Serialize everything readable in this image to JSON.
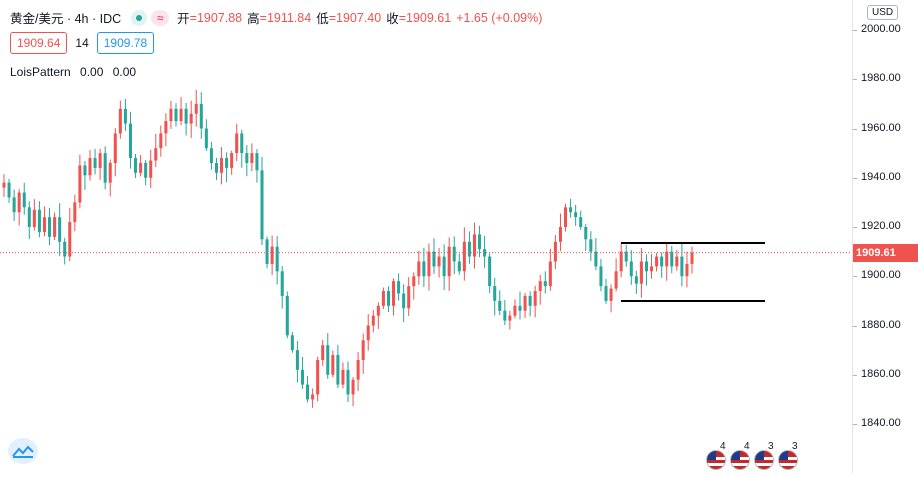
{
  "legend": {
    "symbol": "黄金/美元 · 4h · IDC",
    "approx_symbol": "≈",
    "ohlc": [
      {
        "key": "开",
        "value": "=1907.88"
      },
      {
        "key": "高",
        "value": "=1911.84"
      },
      {
        "key": "低",
        "value": "=1907.40"
      },
      {
        "key": "收",
        "value": "=1909.61"
      }
    ],
    "change": "+1.65 (+0.09%)"
  },
  "controls": {
    "bid": "1909.64",
    "spread": "14",
    "ask": "1909.78"
  },
  "indicator": {
    "name": "LoisPattern",
    "value1": "0.00",
    "value2": "0.00"
  },
  "price_axis": {
    "currency": "USD",
    "last_price_label": "1909.61",
    "ticks": [
      "2000.00",
      "1980.00",
      "1960.00",
      "1940.00",
      "1920.00",
      "1900.00",
      "1880.00",
      "1860.00",
      "1840.00"
    ]
  },
  "event_flags": [
    {
      "count": "4"
    },
    {
      "count": "4"
    },
    {
      "count": "3"
    },
    {
      "count": "3"
    }
  ],
  "colors": {
    "up": "#ef5350",
    "down": "#26a69a",
    "last_price_line": "#ef5350",
    "trend_lines": "#000000"
  },
  "chart_data": {
    "type": "candlestick",
    "ylim": [
      1835,
      2005
    ],
    "last_price": 1909.61,
    "closes": [
      1938,
      1932,
      1926,
      1934,
      1928,
      1920,
      1927,
      1918,
      1924,
      1916,
      1924,
      1914,
      1908,
      1922,
      1930,
      1945,
      1941,
      1948,
      1944,
      1950,
      1938,
      1946,
      1958,
      1968,
      1962,
      1948,
      1942,
      1946,
      1940,
      1947,
      1952,
      1958,
      1963,
      1968,
      1963,
      1968,
      1962,
      1966,
      1970,
      1960,
      1952,
      1946,
      1942,
      1948,
      1944,
      1950,
      1958,
      1950,
      1946,
      1950,
      1943,
      1915,
      1905,
      1912,
      1902,
      1892,
      1876,
      1870,
      1862,
      1856,
      1850,
      1852,
      1866,
      1872,
      1860,
      1868,
      1856,
      1862,
      1852,
      1858,
      1866,
      1874,
      1880,
      1884,
      1888,
      1894,
      1888,
      1898,
      1893,
      1887,
      1896,
      1900,
      1906,
      1900,
      1910,
      1904,
      1908,
      1900,
      1912,
      1906,
      1902,
      1914,
      1908,
      1917,
      1911,
      1908,
      1896,
      1890,
      1886,
      1882,
      1884,
      1888,
      1886,
      1892,
      1888,
      1894,
      1898,
      1896,
      1906,
      1914,
      1920,
      1928,
      1926,
      1924,
      1920,
      1915,
      1910,
      1904,
      1896,
      1890,
      1895,
      1902,
      1910,
      1906,
      1900,
      1897,
      1906,
      1902,
      1904,
      1908,
      1904,
      1910,
      1904,
      1908,
      1900,
      1905,
      1909.61
    ]
  }
}
